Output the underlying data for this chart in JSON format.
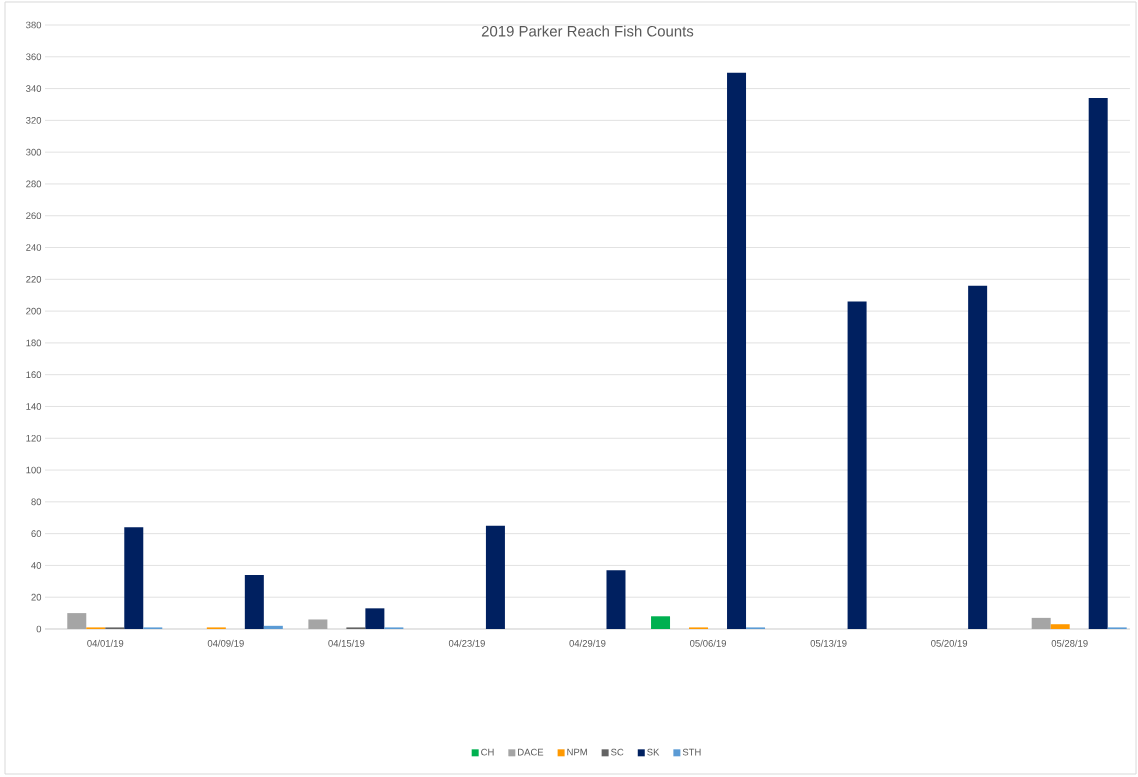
{
  "chart_data": {
    "type": "bar",
    "title": "2019 Parker Reach Fish Counts",
    "categories": [
      "04/01/19",
      "04/09/19",
      "04/15/19",
      "04/23/19",
      "04/29/19",
      "05/06/19",
      "05/13/19",
      "05/20/19",
      "05/28/19"
    ],
    "series": [
      {
        "name": "CH",
        "color": "#00b050",
        "values": [
          0,
          0,
          0,
          0,
          0,
          8,
          0,
          0,
          0
        ]
      },
      {
        "name": "DACE",
        "color": "#a5a5a5",
        "values": [
          10,
          0,
          6,
          0,
          0,
          0,
          0,
          0,
          7
        ]
      },
      {
        "name": "NPM",
        "color": "#ff9900",
        "values": [
          1,
          1,
          0,
          0,
          0,
          1,
          0,
          0,
          3
        ]
      },
      {
        "name": "SC",
        "color": "#636363",
        "values": [
          1,
          0,
          1,
          0,
          0,
          0,
          0,
          0,
          0
        ]
      },
      {
        "name": "SK",
        "color": "#002060",
        "values": [
          64,
          34,
          13,
          65,
          37,
          350,
          206,
          216,
          334
        ]
      },
      {
        "name": "STH",
        "color": "#5b9bd5",
        "values": [
          1,
          2,
          1,
          0,
          0,
          1,
          0,
          0,
          1
        ]
      }
    ],
    "ylim": [
      0,
      380
    ],
    "yticks": [
      0,
      20,
      40,
      60,
      80,
      100,
      120,
      140,
      160,
      180,
      200,
      220,
      240,
      260,
      280,
      300,
      320,
      340,
      360,
      380
    ],
    "grid": "y",
    "legend": "bottom"
  }
}
